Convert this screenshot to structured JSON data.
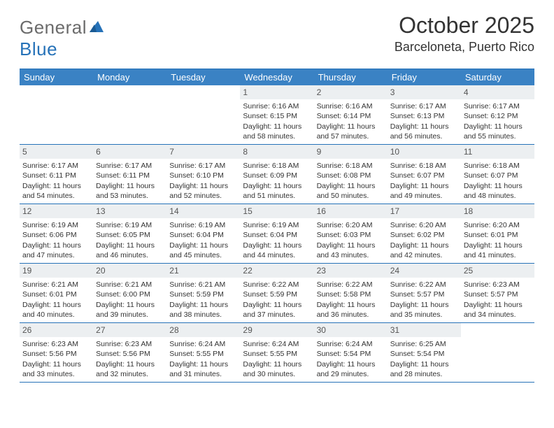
{
  "logo": {
    "text_general": "General",
    "text_blue": "Blue"
  },
  "title": "October 2025",
  "location": "Barceloneta, Puerto Rico",
  "colors": {
    "header_bg": "#3a82c4",
    "header_text": "#ffffff",
    "border": "#2672b8",
    "daynum_bg": "#eceff1",
    "text": "#333333",
    "logo_gray": "#6b6b6b",
    "logo_blue": "#2672b8",
    "page_bg": "#ffffff"
  },
  "fonts": {
    "title_size": 32,
    "location_size": 18,
    "dayheader_size": 13,
    "daynum_size": 12,
    "body_size": 10.5
  },
  "day_names": [
    "Sunday",
    "Monday",
    "Tuesday",
    "Wednesday",
    "Thursday",
    "Friday",
    "Saturday"
  ],
  "weeks": [
    [
      {
        "n": "",
        "sunrise": "",
        "sunset": "",
        "daylight": ""
      },
      {
        "n": "",
        "sunrise": "",
        "sunset": "",
        "daylight": ""
      },
      {
        "n": "",
        "sunrise": "",
        "sunset": "",
        "daylight": ""
      },
      {
        "n": "1",
        "sunrise": "Sunrise: 6:16 AM",
        "sunset": "Sunset: 6:15 PM",
        "daylight": "Daylight: 11 hours and 58 minutes."
      },
      {
        "n": "2",
        "sunrise": "Sunrise: 6:16 AM",
        "sunset": "Sunset: 6:14 PM",
        "daylight": "Daylight: 11 hours and 57 minutes."
      },
      {
        "n": "3",
        "sunrise": "Sunrise: 6:17 AM",
        "sunset": "Sunset: 6:13 PM",
        "daylight": "Daylight: 11 hours and 56 minutes."
      },
      {
        "n": "4",
        "sunrise": "Sunrise: 6:17 AM",
        "sunset": "Sunset: 6:12 PM",
        "daylight": "Daylight: 11 hours and 55 minutes."
      }
    ],
    [
      {
        "n": "5",
        "sunrise": "Sunrise: 6:17 AM",
        "sunset": "Sunset: 6:11 PM",
        "daylight": "Daylight: 11 hours and 54 minutes."
      },
      {
        "n": "6",
        "sunrise": "Sunrise: 6:17 AM",
        "sunset": "Sunset: 6:11 PM",
        "daylight": "Daylight: 11 hours and 53 minutes."
      },
      {
        "n": "7",
        "sunrise": "Sunrise: 6:17 AM",
        "sunset": "Sunset: 6:10 PM",
        "daylight": "Daylight: 11 hours and 52 minutes."
      },
      {
        "n": "8",
        "sunrise": "Sunrise: 6:18 AM",
        "sunset": "Sunset: 6:09 PM",
        "daylight": "Daylight: 11 hours and 51 minutes."
      },
      {
        "n": "9",
        "sunrise": "Sunrise: 6:18 AM",
        "sunset": "Sunset: 6:08 PM",
        "daylight": "Daylight: 11 hours and 50 minutes."
      },
      {
        "n": "10",
        "sunrise": "Sunrise: 6:18 AM",
        "sunset": "Sunset: 6:07 PM",
        "daylight": "Daylight: 11 hours and 49 minutes."
      },
      {
        "n": "11",
        "sunrise": "Sunrise: 6:18 AM",
        "sunset": "Sunset: 6:07 PM",
        "daylight": "Daylight: 11 hours and 48 minutes."
      }
    ],
    [
      {
        "n": "12",
        "sunrise": "Sunrise: 6:19 AM",
        "sunset": "Sunset: 6:06 PM",
        "daylight": "Daylight: 11 hours and 47 minutes."
      },
      {
        "n": "13",
        "sunrise": "Sunrise: 6:19 AM",
        "sunset": "Sunset: 6:05 PM",
        "daylight": "Daylight: 11 hours and 46 minutes."
      },
      {
        "n": "14",
        "sunrise": "Sunrise: 6:19 AM",
        "sunset": "Sunset: 6:04 PM",
        "daylight": "Daylight: 11 hours and 45 minutes."
      },
      {
        "n": "15",
        "sunrise": "Sunrise: 6:19 AM",
        "sunset": "Sunset: 6:04 PM",
        "daylight": "Daylight: 11 hours and 44 minutes."
      },
      {
        "n": "16",
        "sunrise": "Sunrise: 6:20 AM",
        "sunset": "Sunset: 6:03 PM",
        "daylight": "Daylight: 11 hours and 43 minutes."
      },
      {
        "n": "17",
        "sunrise": "Sunrise: 6:20 AM",
        "sunset": "Sunset: 6:02 PM",
        "daylight": "Daylight: 11 hours and 42 minutes."
      },
      {
        "n": "18",
        "sunrise": "Sunrise: 6:20 AM",
        "sunset": "Sunset: 6:01 PM",
        "daylight": "Daylight: 11 hours and 41 minutes."
      }
    ],
    [
      {
        "n": "19",
        "sunrise": "Sunrise: 6:21 AM",
        "sunset": "Sunset: 6:01 PM",
        "daylight": "Daylight: 11 hours and 40 minutes."
      },
      {
        "n": "20",
        "sunrise": "Sunrise: 6:21 AM",
        "sunset": "Sunset: 6:00 PM",
        "daylight": "Daylight: 11 hours and 39 minutes."
      },
      {
        "n": "21",
        "sunrise": "Sunrise: 6:21 AM",
        "sunset": "Sunset: 5:59 PM",
        "daylight": "Daylight: 11 hours and 38 minutes."
      },
      {
        "n": "22",
        "sunrise": "Sunrise: 6:22 AM",
        "sunset": "Sunset: 5:59 PM",
        "daylight": "Daylight: 11 hours and 37 minutes."
      },
      {
        "n": "23",
        "sunrise": "Sunrise: 6:22 AM",
        "sunset": "Sunset: 5:58 PM",
        "daylight": "Daylight: 11 hours and 36 minutes."
      },
      {
        "n": "24",
        "sunrise": "Sunrise: 6:22 AM",
        "sunset": "Sunset: 5:57 PM",
        "daylight": "Daylight: 11 hours and 35 minutes."
      },
      {
        "n": "25",
        "sunrise": "Sunrise: 6:23 AM",
        "sunset": "Sunset: 5:57 PM",
        "daylight": "Daylight: 11 hours and 34 minutes."
      }
    ],
    [
      {
        "n": "26",
        "sunrise": "Sunrise: 6:23 AM",
        "sunset": "Sunset: 5:56 PM",
        "daylight": "Daylight: 11 hours and 33 minutes."
      },
      {
        "n": "27",
        "sunrise": "Sunrise: 6:23 AM",
        "sunset": "Sunset: 5:56 PM",
        "daylight": "Daylight: 11 hours and 32 minutes."
      },
      {
        "n": "28",
        "sunrise": "Sunrise: 6:24 AM",
        "sunset": "Sunset: 5:55 PM",
        "daylight": "Daylight: 11 hours and 31 minutes."
      },
      {
        "n": "29",
        "sunrise": "Sunrise: 6:24 AM",
        "sunset": "Sunset: 5:55 PM",
        "daylight": "Daylight: 11 hours and 30 minutes."
      },
      {
        "n": "30",
        "sunrise": "Sunrise: 6:24 AM",
        "sunset": "Sunset: 5:54 PM",
        "daylight": "Daylight: 11 hours and 29 minutes."
      },
      {
        "n": "31",
        "sunrise": "Sunrise: 6:25 AM",
        "sunset": "Sunset: 5:54 PM",
        "daylight": "Daylight: 11 hours and 28 minutes."
      },
      {
        "n": "",
        "sunrise": "",
        "sunset": "",
        "daylight": ""
      }
    ]
  ]
}
